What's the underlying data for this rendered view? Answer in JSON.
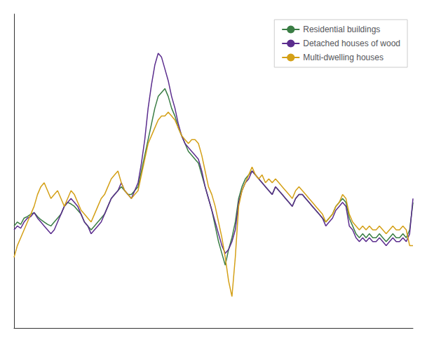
{
  "chart_data": {
    "type": "line",
    "x": [
      0,
      1,
      2,
      3,
      4,
      5,
      6,
      7,
      8,
      9,
      10,
      11,
      12,
      13,
      14,
      15,
      16,
      17,
      18,
      19,
      20,
      21,
      22,
      23,
      24,
      25,
      26,
      27,
      28,
      29,
      30,
      31,
      32,
      33,
      34,
      35,
      36,
      37,
      38,
      39,
      40,
      41,
      42,
      43,
      44,
      45,
      46,
      47,
      48,
      49,
      50,
      51,
      52,
      53,
      54,
      55,
      56,
      57,
      58,
      59,
      60,
      61,
      62,
      63,
      64,
      65,
      66,
      67,
      68,
      69,
      70,
      71,
      72,
      73,
      74,
      75,
      76,
      77,
      78,
      79,
      80,
      81,
      82,
      83,
      84,
      85,
      86,
      87,
      88,
      89,
      90,
      91,
      92,
      93,
      94,
      95,
      96,
      97,
      98,
      99,
      100,
      101,
      102,
      103,
      104,
      105,
      106,
      107,
      108,
      109,
      110,
      111,
      112,
      113,
      114,
      115,
      116,
      117,
      118,
      119
    ],
    "series": [
      {
        "name": "Residential buildings",
        "color": "#3a7d44",
        "values": [
          -2.0,
          -1.5,
          -1.8,
          -1.0,
          -0.8,
          -0.5,
          -0.3,
          -0.8,
          -1.2,
          -1.5,
          -1.8,
          -2.0,
          -1.5,
          -1.0,
          -0.5,
          0.5,
          1.0,
          0.8,
          0.5,
          0.0,
          -0.5,
          -1.5,
          -2.0,
          -2.5,
          -2.0,
          -1.5,
          -1.0,
          -0.5,
          0.5,
          1.5,
          2.0,
          2.5,
          3.0,
          2.5,
          2.0,
          2.0,
          2.5,
          3.0,
          5.0,
          7.0,
          9.0,
          11.0,
          13.0,
          14.5,
          15.0,
          15.5,
          14.5,
          13.0,
          12.0,
          10.5,
          9.5,
          8.5,
          7.5,
          7.0,
          6.5,
          6.0,
          4.5,
          3.0,
          1.5,
          0.0,
          -2.0,
          -4.0,
          -5.5,
          -7.0,
          -5.0,
          -3.5,
          -1.5,
          1.5,
          3.0,
          4.0,
          4.5,
          5.0,
          4.5,
          4.0,
          3.5,
          3.0,
          2.5,
          2.0,
          3.0,
          2.5,
          2.0,
          1.5,
          1.0,
          0.5,
          1.5,
          2.0,
          2.0,
          1.5,
          1.0,
          0.5,
          0.0,
          -0.5,
          -1.0,
          -1.5,
          -1.0,
          -0.5,
          0.5,
          1.0,
          1.5,
          1.0,
          -1.0,
          -2.0,
          -3.0,
          -3.5,
          -3.0,
          -3.5,
          -3.0,
          -3.5,
          -3.5,
          -3.0,
          -3.5,
          -4.0,
          -3.5,
          -3.0,
          -3.5,
          -3.5,
          -3.0,
          -3.5,
          -2.5,
          1.0
        ]
      },
      {
        "name": "Detached houses of wood",
        "color": "#5b2d8e",
        "values": [
          -2.5,
          -2.0,
          -2.3,
          -1.5,
          -1.0,
          -0.8,
          -0.3,
          -1.0,
          -1.5,
          -2.0,
          -2.5,
          -3.0,
          -2.5,
          -1.5,
          -0.5,
          0.5,
          1.0,
          1.5,
          1.0,
          0.5,
          -0.5,
          -1.5,
          -2.0,
          -3.0,
          -2.5,
          -2.0,
          -1.5,
          -0.5,
          0.5,
          1.5,
          2.0,
          2.5,
          3.5,
          2.5,
          2.0,
          1.5,
          2.5,
          3.5,
          6.0,
          9.0,
          13.0,
          16.0,
          18.5,
          20.0,
          19.5,
          18.0,
          16.5,
          14.5,
          13.0,
          11.0,
          9.5,
          8.5,
          8.0,
          7.5,
          7.0,
          6.5,
          5.0,
          3.0,
          1.5,
          0.0,
          -1.5,
          -3.0,
          -4.5,
          -5.5,
          -5.0,
          -4.0,
          -2.5,
          1.0,
          2.5,
          3.5,
          4.0,
          5.0,
          4.5,
          4.0,
          3.5,
          3.0,
          2.5,
          2.0,
          3.0,
          2.5,
          2.0,
          1.5,
          1.0,
          0.5,
          1.5,
          2.0,
          2.0,
          1.5,
          1.0,
          0.5,
          0.0,
          -0.5,
          -1.0,
          -2.0,
          -1.5,
          -1.0,
          0.0,
          0.5,
          1.0,
          0.5,
          -2.0,
          -2.5,
          -3.5,
          -4.0,
          -3.5,
          -4.0,
          -3.5,
          -4.0,
          -4.0,
          -3.5,
          -4.0,
          -4.5,
          -4.0,
          -3.5,
          -4.0,
          -4.0,
          -3.5,
          -4.0,
          -3.0,
          1.5
        ]
      },
      {
        "name": "Multi-dwelling houses",
        "color": "#d4a017",
        "values": [
          -6.0,
          -4.5,
          -3.5,
          -2.5,
          -1.5,
          -0.5,
          0.5,
          2.0,
          3.0,
          3.5,
          2.5,
          1.5,
          2.0,
          2.5,
          1.5,
          0.5,
          1.5,
          2.5,
          2.0,
          1.0,
          0.0,
          -0.5,
          -1.0,
          -1.5,
          -0.5,
          0.5,
          1.5,
          2.0,
          3.0,
          4.0,
          4.5,
          5.0,
          3.5,
          2.5,
          2.0,
          1.5,
          2.0,
          2.5,
          4.5,
          6.5,
          8.5,
          9.5,
          10.5,
          11.5,
          12.0,
          12.0,
          12.5,
          12.0,
          11.5,
          10.5,
          9.5,
          9.0,
          8.5,
          9.0,
          9.0,
          8.5,
          7.0,
          5.0,
          3.0,
          2.0,
          0.5,
          -1.5,
          -3.5,
          -6.0,
          -9.0,
          -11.0,
          -6.0,
          0.5,
          2.5,
          3.5,
          4.5,
          5.5,
          4.5,
          4.0,
          4.5,
          3.5,
          4.0,
          3.5,
          4.0,
          3.5,
          3.0,
          2.5,
          2.0,
          1.5,
          2.5,
          3.0,
          2.5,
          2.0,
          1.5,
          1.0,
          0.5,
          0.0,
          -0.5,
          -1.5,
          -1.0,
          -0.5,
          0.5,
          1.0,
          2.0,
          1.5,
          -0.5,
          -1.5,
          -2.0,
          -2.5,
          -2.0,
          -2.5,
          -2.0,
          -2.5,
          -2.5,
          -2.0,
          -2.5,
          -3.0,
          -2.5,
          -2.0,
          -2.5,
          -2.5,
          -2.0,
          -2.5,
          -4.5,
          -4.5
        ]
      }
    ],
    "xlim": [
      0,
      119
    ],
    "ylim": [
      -15,
      25
    ],
    "xticks": [],
    "yticks": [],
    "tick_labels": false,
    "grid": false,
    "legend": "upper right"
  }
}
